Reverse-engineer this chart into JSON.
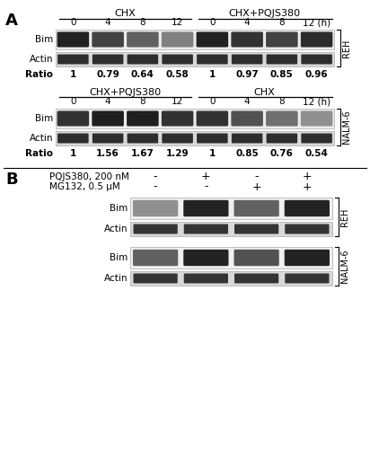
{
  "panel_A_label": "A",
  "panel_B_label": "B",
  "REH_top_label": "CHX",
  "REH_top_label2": "CHX+PQJS380",
  "NALM_top_label": "CHX+PQJS380",
  "NALM_top_label2": "CHX",
  "time_labels": [
    "0",
    "4",
    "8",
    "12",
    "0",
    "4",
    "8",
    "12 (h)"
  ],
  "REH_ratio": [
    "1",
    "0.79",
    "0.64",
    "0.58",
    "1",
    "0.97",
    "0.85",
    "0.96"
  ],
  "NALM_ratio": [
    "1",
    "1.56",
    "1.67",
    "1.29",
    "1",
    "0.85",
    "0.76",
    "0.54"
  ],
  "REH_cell_label": "REH",
  "NALM_cell_label": "NALM-6",
  "Bim_label": "Bim",
  "Actin_label": "Actin",
  "Ratio_label": "Ratio",
  "panel_B_row1": "PQJS380, 200 nM",
  "panel_B_row2": "MG132, 0.5 μM",
  "panel_B_signs_row1": [
    "-",
    "+",
    "-",
    "+"
  ],
  "panel_B_signs_row2": [
    "-",
    "-",
    "+",
    "+"
  ],
  "bg_color": "#ffffff",
  "blot_bg": "#e8e8e8",
  "band_colors_reh_bim": [
    "#111111",
    "#333333",
    "#555555",
    "#777777",
    "#111111",
    "#222222",
    "#333333",
    "#1a1a1a"
  ],
  "band_colors_nalm_bim": [
    "#222222",
    "#0d0d0d",
    "#0d0d0d",
    "#222222",
    "#222222",
    "#444444",
    "#666666",
    "#888888"
  ],
  "band_colors_actin": [
    "#1a1a1a",
    "#1a1a1a",
    "#1a1a1a",
    "#1a1a1a",
    "#1a1a1a",
    "#1a1a1a",
    "#1a1a1a",
    "#1a1a1a"
  ],
  "pb_reh_bim_colors": [
    "#888888",
    "#111111",
    "#555555",
    "#111111"
  ],
  "pb_nalm_bim_colors": [
    "#555555",
    "#111111",
    "#444444",
    "#111111"
  ],
  "pb_actin_colors": [
    "#222222",
    "#222222",
    "#222222",
    "#222222"
  ]
}
